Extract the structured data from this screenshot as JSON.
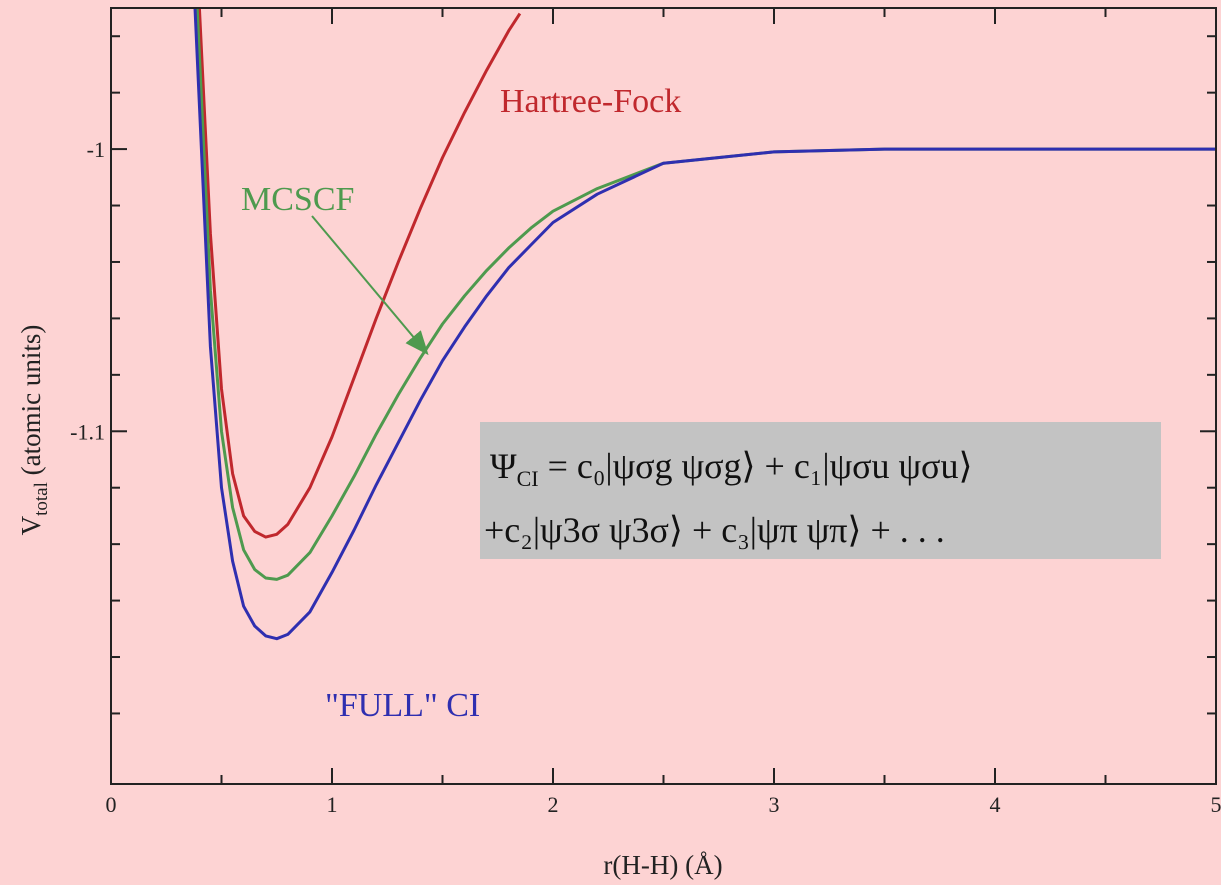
{
  "chart_data": {
    "type": "line",
    "xlabel": "r(H-H) (Å)",
    "ylabel": "V_total (atomic units)",
    "ylabel_main": "V",
    "ylabel_sub": "total",
    "ylabel_rest": " (atomic units)",
    "xlim": [
      0,
      5
    ],
    "ylim": [
      -1.225,
      -0.95
    ],
    "x_ticks": [
      0,
      1,
      2,
      3,
      4,
      5
    ],
    "x_tick_labels": [
      "0",
      "1",
      "2",
      "3",
      "4",
      "5"
    ],
    "y_ticks": [
      -1.1,
      -1
    ],
    "y_tick_labels": [
      "-1.1",
      "-1"
    ],
    "y_minor_ticks": [
      -1.2,
      -1.18,
      -1.16,
      -1.14,
      -1.12,
      -1.08,
      -1.06,
      -1.04,
      -1.02,
      -0.98,
      -0.96
    ],
    "x_minor_ticks": [
      0.5,
      1.5,
      2.5,
      3.5,
      4.5
    ],
    "grid": false,
    "series": [
      {
        "name": "Hartree-Fock",
        "color": "#c0282d",
        "x": [
          0.4,
          0.45,
          0.5,
          0.55,
          0.6,
          0.65,
          0.7,
          0.75,
          0.8,
          0.9,
          1.0,
          1.1,
          1.2,
          1.3,
          1.4,
          1.5,
          1.6,
          1.7,
          1.8,
          1.85
        ],
        "y": [
          -0.95,
          -1.03,
          -1.085,
          -1.115,
          -1.13,
          -1.1355,
          -1.1375,
          -1.1365,
          -1.133,
          -1.12,
          -1.102,
          -1.081,
          -1.06,
          -1.04,
          -1.021,
          -1.003,
          -0.987,
          -0.972,
          -0.958,
          -0.952
        ]
      },
      {
        "name": "MCSCF",
        "color": "#4e9a4e",
        "x": [
          0.39,
          0.45,
          0.5,
          0.55,
          0.6,
          0.65,
          0.7,
          0.75,
          0.8,
          0.9,
          1.0,
          1.1,
          1.2,
          1.3,
          1.4,
          1.5,
          1.6,
          1.7,
          1.8,
          1.9,
          2.0,
          2.2,
          2.5,
          3.0,
          3.5,
          4.0,
          5.0
        ],
        "y": [
          -0.95,
          -1.05,
          -1.1,
          -1.127,
          -1.142,
          -1.149,
          -1.152,
          -1.1525,
          -1.151,
          -1.143,
          -1.13,
          -1.116,
          -1.101,
          -1.087,
          -1.074,
          -1.062,
          -1.052,
          -1.043,
          -1.035,
          -1.028,
          -1.022,
          -1.014,
          -1.005,
          -1.001,
          -1.0,
          -1.0,
          -1.0
        ]
      },
      {
        "name": "\"FULL\" CI",
        "color": "#2f2fb0",
        "x": [
          0.38,
          0.45,
          0.5,
          0.55,
          0.6,
          0.65,
          0.7,
          0.75,
          0.8,
          0.9,
          1.0,
          1.1,
          1.2,
          1.3,
          1.4,
          1.5,
          1.6,
          1.7,
          1.8,
          1.9,
          2.0,
          2.2,
          2.5,
          3.0,
          3.5,
          4.0,
          5.0
        ],
        "y": [
          -0.95,
          -1.07,
          -1.12,
          -1.146,
          -1.162,
          -1.169,
          -1.1725,
          -1.1735,
          -1.172,
          -1.164,
          -1.15,
          -1.135,
          -1.119,
          -1.104,
          -1.089,
          -1.075,
          -1.063,
          -1.052,
          -1.042,
          -1.034,
          -1.026,
          -1.016,
          -1.005,
          -1.001,
          -1.0,
          -1.0,
          -1.0
        ]
      }
    ],
    "annotations": {
      "hf_label": "Hartree-Fock",
      "mcscf_label": "MCSCF",
      "fullci_label": "\"FULL\" CI",
      "formula_line1_psi": "Ψ",
      "formula_line1_sub": "CI",
      "formula_line1_rest": " = c₀|ψσg ψσg⟩ + c₁|ψσu ψσu⟩",
      "formula_line2": "+c₂|ψ3σ ψ3σ⟩ + c₃|ψπ ψπ⟩ + . . .",
      "formula_box_color": "#c3c3c3"
    },
    "background_color": "#fdd3d3"
  }
}
